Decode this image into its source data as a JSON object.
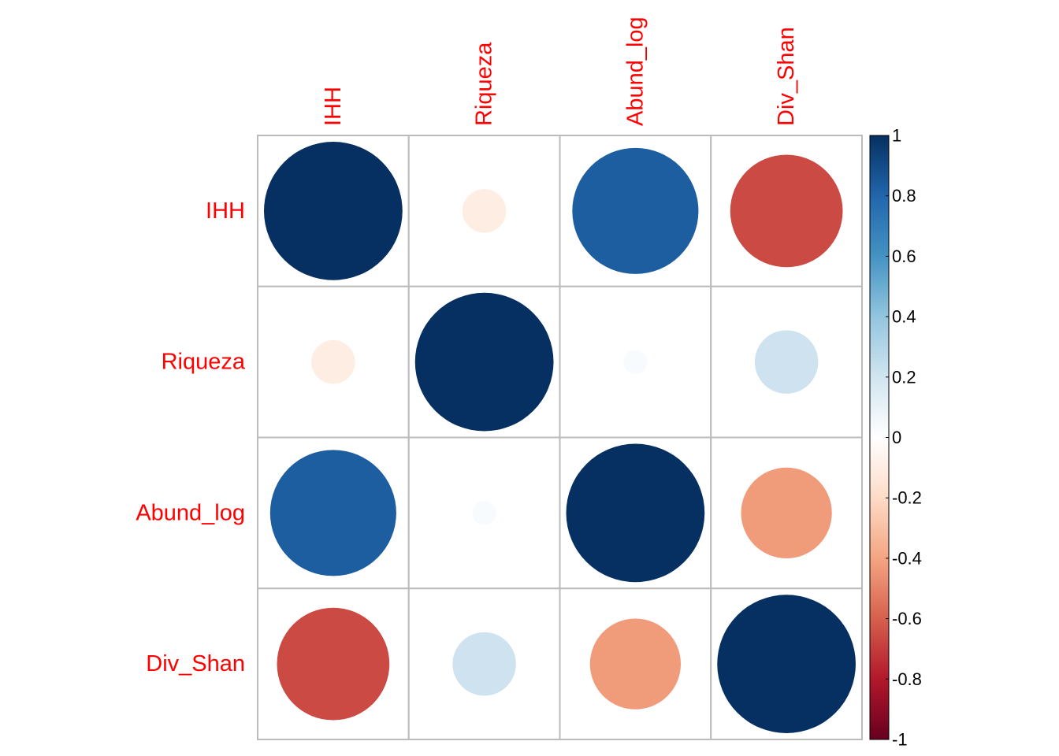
{
  "chart_data": {
    "type": "heatmap",
    "subtype": "correlation-circle-matrix",
    "variables": [
      "IHH",
      "Riqueza",
      "Abund_log",
      "Div_Shan"
    ],
    "matrix": [
      [
        1.0,
        -0.1,
        0.83,
        -0.66
      ],
      [
        -0.1,
        1.0,
        0.03,
        0.21
      ],
      [
        0.83,
        0.03,
        1.0,
        -0.43
      ],
      [
        -0.66,
        0.21,
        -0.43,
        1.0
      ]
    ],
    "colorbar": {
      "range": [
        -1,
        1
      ],
      "tick_labels": [
        "1",
        "0.8",
        "0.6",
        "0.4",
        "0.2",
        "0",
        "-0.2",
        "-0.4",
        "-0.6",
        "-0.8",
        "-1"
      ],
      "stops": [
        "#67001f",
        "#b2182b",
        "#d6604d",
        "#f4a582",
        "#fddbc7",
        "#ffffff",
        "#d1e5f0",
        "#92c5de",
        "#4393c3",
        "#2166ac",
        "#053061"
      ]
    },
    "label_color": "#ff0000",
    "grid_color": "#bbbbbb",
    "title": "",
    "xlabel": "",
    "ylabel": ""
  }
}
